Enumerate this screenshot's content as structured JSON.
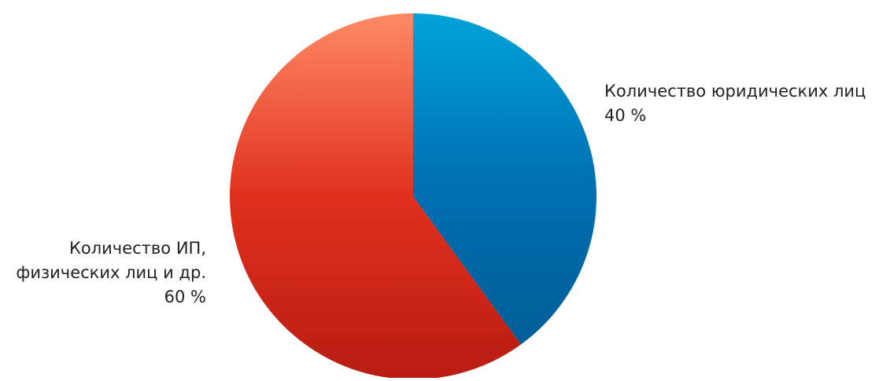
{
  "chart_data": {
    "type": "pie",
    "title": "",
    "start_angle_deg": 0,
    "direction": "clockwise",
    "slices": [
      {
        "name": "Количество юридических лиц",
        "value": 40,
        "value_label": "40 %",
        "label_lines": [
          "Количество юридических лиц"
        ],
        "label_side": "right",
        "colors": [
          "#00a3d9",
          "#0070b3",
          "#005d96"
        ]
      },
      {
        "name": "Количество ИП, физических лиц и др.",
        "value": 60,
        "value_label": "60 %",
        "label_lines": [
          "Количество ИП,",
          "физических лиц и др."
        ],
        "label_side": "left",
        "colors": [
          "#ff8a65",
          "#e0301e",
          "#b81c12"
        ]
      }
    ]
  }
}
